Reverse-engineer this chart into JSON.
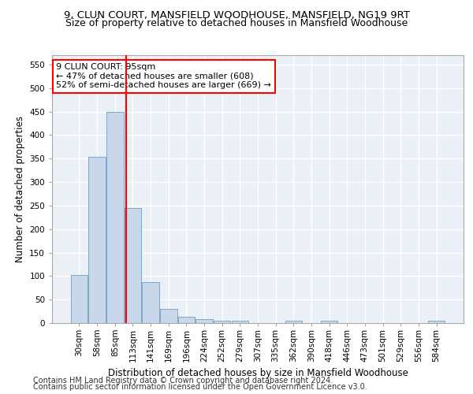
{
  "title": "9, CLUN COURT, MANSFIELD WOODHOUSE, MANSFIELD, NG19 9RT",
  "subtitle": "Size of property relative to detached houses in Mansfield Woodhouse",
  "xlabel": "Distribution of detached houses by size in Mansfield Woodhouse",
  "ylabel": "Number of detached properties",
  "footer_line1": "Contains HM Land Registry data © Crown copyright and database right 2024.",
  "footer_line2": "Contains public sector information licensed under the Open Government Licence v3.0.",
  "bin_labels": [
    "30sqm",
    "58sqm",
    "85sqm",
    "113sqm",
    "141sqm",
    "169sqm",
    "196sqm",
    "224sqm",
    "252sqm",
    "279sqm",
    "307sqm",
    "335sqm",
    "362sqm",
    "390sqm",
    "418sqm",
    "446sqm",
    "473sqm",
    "501sqm",
    "529sqm",
    "556sqm",
    "584sqm"
  ],
  "bar_values": [
    103,
    353,
    450,
    245,
    87,
    30,
    13,
    9,
    5,
    5,
    0,
    0,
    5,
    0,
    5,
    0,
    0,
    0,
    0,
    0,
    5
  ],
  "bar_color": "#c8d8ea",
  "bar_edge_color": "#7aaac8",
  "vline_x": 2.62,
  "vline_color": "red",
  "annotation_text": "9 CLUN COURT: 95sqm\n← 47% of detached houses are smaller (608)\n52% of semi-detached houses are larger (669) →",
  "annotation_box_color": "white",
  "annotation_box_edge_color": "red",
  "ylim": [
    0,
    570
  ],
  "yticks": [
    0,
    50,
    100,
    150,
    200,
    250,
    300,
    350,
    400,
    450,
    500,
    550
  ],
  "background_color": "#eaf0f6",
  "grid_color": "white",
  "title_fontsize": 9.5,
  "subtitle_fontsize": 9,
  "ylabel_fontsize": 8.5,
  "xlabel_fontsize": 8.5,
  "tick_fontsize": 7.5,
  "footer_fontsize": 7,
  "annotation_fontsize": 8
}
